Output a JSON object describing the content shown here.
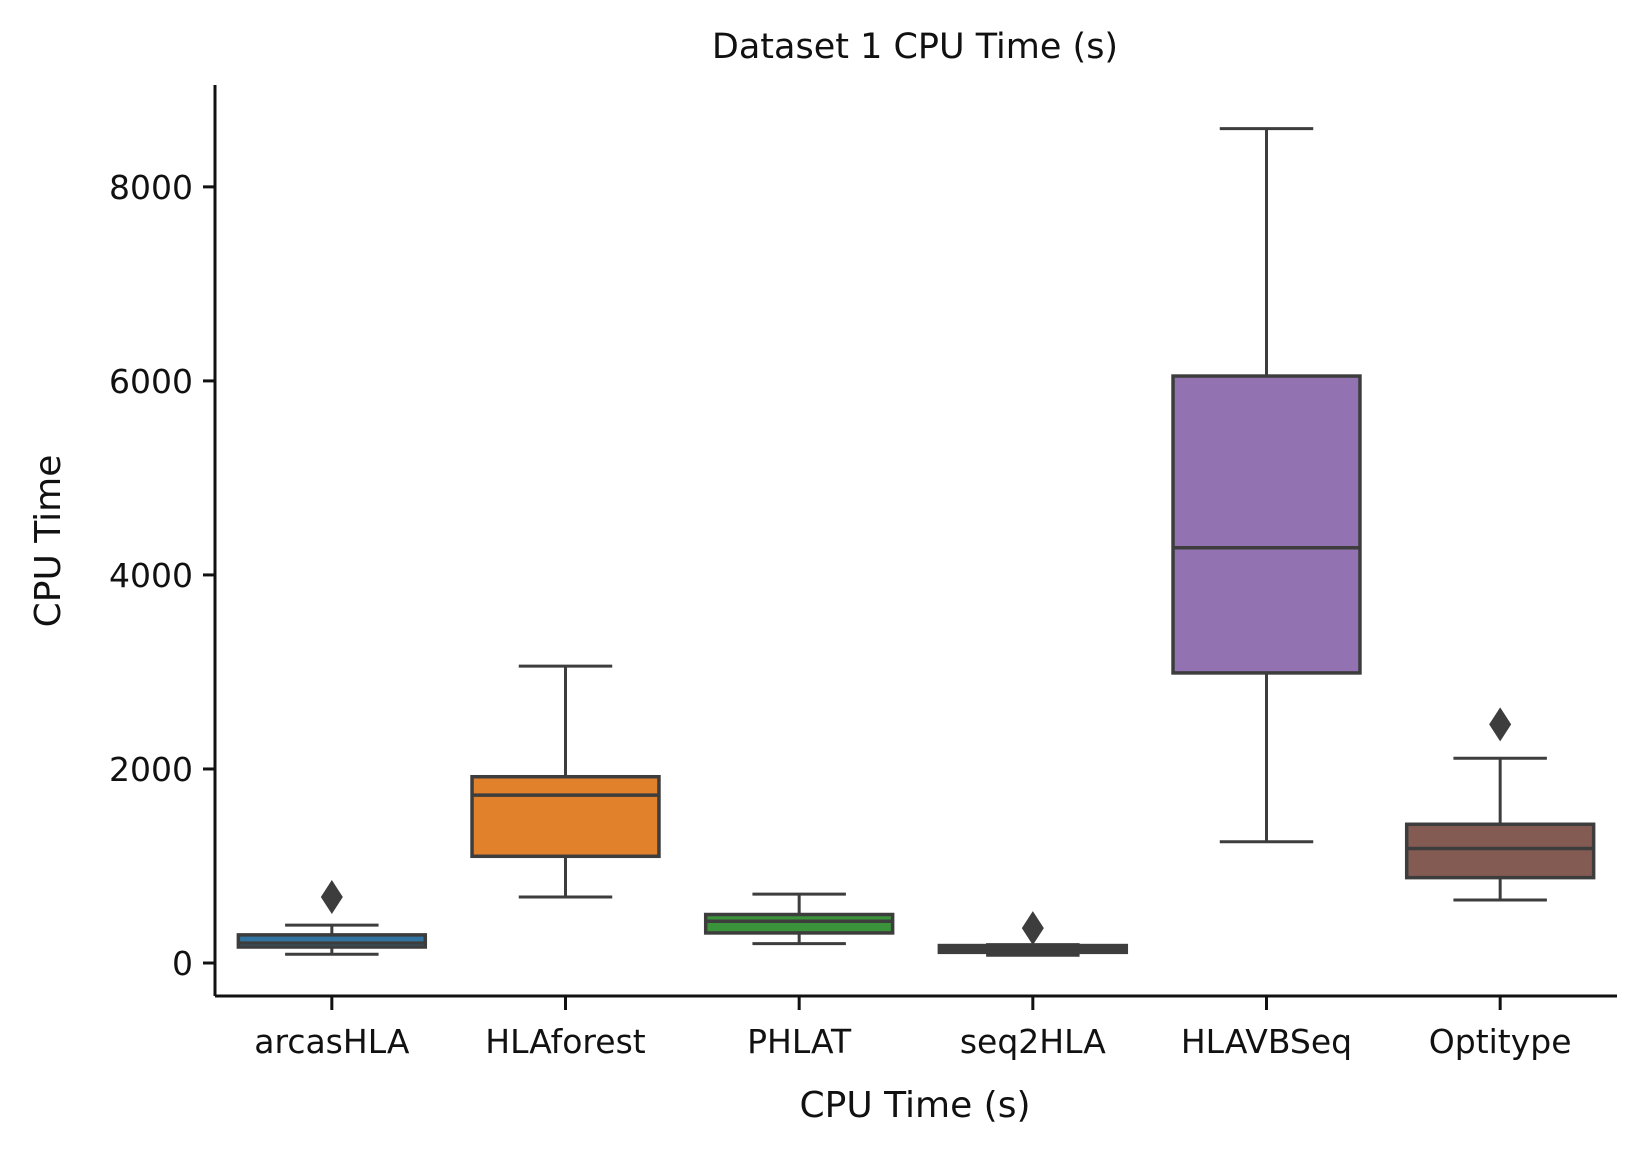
{
  "chart_data": {
    "type": "box",
    "title": "Dataset 1 CPU Time (s)",
    "xlabel": "CPU Time (s)",
    "ylabel": "CPU Time",
    "ylim": [
      -340,
      9050
    ],
    "yticks": [
      "0",
      "2000",
      "4000",
      "6000",
      "8000"
    ],
    "grid": false,
    "categories": [
      "arcasHLA",
      "HLAforest",
      "PHLAT",
      "seq2HLA",
      "HLAVBSeq",
      "Optitype"
    ],
    "series": [
      {
        "category": "arcasHLA",
        "color": "#3274a1",
        "whisker_low": 90,
        "q1": 165,
        "median": 205,
        "q3": 290,
        "whisker_high": 390,
        "outliers": [
          680
        ]
      },
      {
        "category": "HLAforest",
        "color": "#e1812c",
        "whisker_low": 680,
        "q1": 1100,
        "median": 1730,
        "q3": 1920,
        "whisker_high": 3060,
        "outliers": []
      },
      {
        "category": "PHLAT",
        "color": "#3a923a",
        "whisker_low": 200,
        "q1": 310,
        "median": 430,
        "q3": 500,
        "whisker_high": 710,
        "outliers": []
      },
      {
        "category": "seq2HLA",
        "color": "#3a3a3a",
        "whisker_low": 80,
        "q1": 110,
        "median": 150,
        "q3": 180,
        "whisker_high": 190,
        "outliers": [
          360
        ]
      },
      {
        "category": "HLAVBSeq",
        "color": "#9372b2",
        "whisker_low": 1250,
        "q1": 2990,
        "median": 4280,
        "q3": 6050,
        "whisker_high": 8600,
        "outliers": []
      },
      {
        "category": "Optitype",
        "color": "#845b53",
        "whisker_low": 650,
        "q1": 880,
        "median": 1180,
        "q3": 1430,
        "whisker_high": 2110,
        "outliers": [
          2460
        ]
      }
    ]
  }
}
